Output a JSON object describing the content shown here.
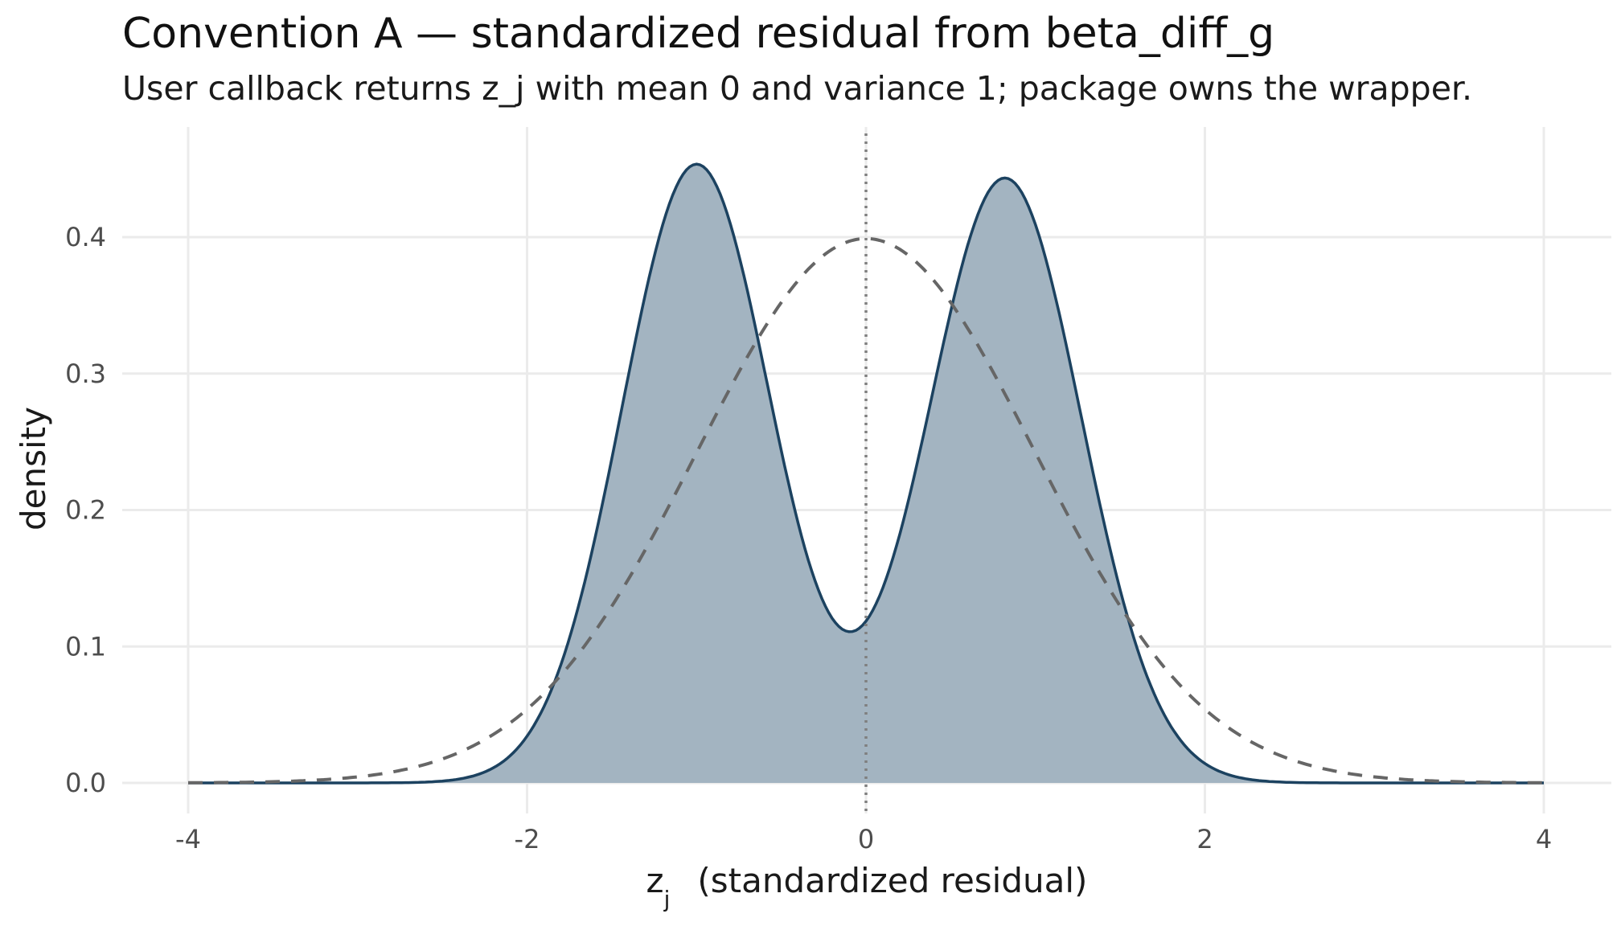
{
  "chart_data": {
    "type": "area",
    "title": "Convention A — standardized residual from beta_diff_g",
    "subtitle": "User callback returns z_j with mean 0 and variance 1; package owns the wrapper.",
    "xlabel_main": "z",
    "xlabel_sub": "j",
    "xlabel_rest": "(standardized residual)",
    "ylabel": "density",
    "xlim": [
      -4,
      4
    ],
    "ylim": [
      0,
      0.46
    ],
    "x_ticks": [
      -4,
      -2,
      0,
      2,
      4
    ],
    "x_tick_labels": [
      "-4",
      "-2",
      "0",
      "2",
      "4"
    ],
    "y_ticks": [
      0.0,
      0.1,
      0.2,
      0.3,
      0.4
    ],
    "y_tick_labels": [
      "0.0",
      "0.1",
      "0.2",
      "0.3",
      "0.4"
    ],
    "grid": true,
    "reference_line_x": 0,
    "series": [
      {
        "style": "filled-solid",
        "color": "#1c4260",
        "fill": "#a3b4c1",
        "components": [
          {
            "weight": 0.5,
            "mean": -1.0,
            "sd": 0.44
          },
          {
            "weight": 0.5,
            "mean": 0.82,
            "sd": 0.45
          }
        ]
      },
      {
        "style": "dashed",
        "color": "#666666",
        "mean": 0,
        "sd": 1
      }
    ]
  }
}
